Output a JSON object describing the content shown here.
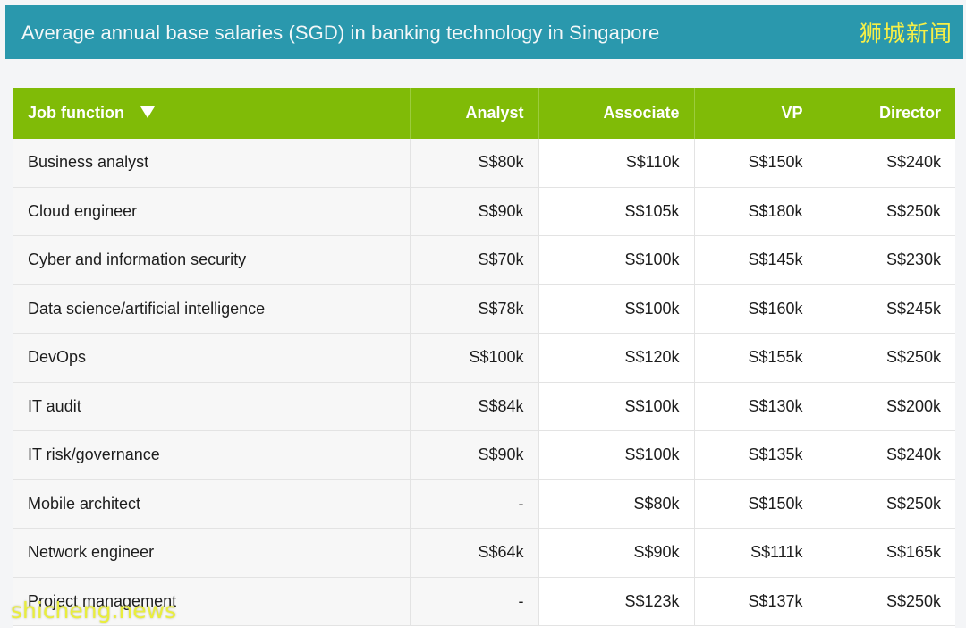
{
  "banner": {
    "title": "Average annual base salaries (SGD) in banking technology in Singapore",
    "logo_text": "狮城新闻"
  },
  "table": {
    "headers": {
      "job": "Job function",
      "analyst": "Analyst",
      "associate": "Associate",
      "vp": "VP",
      "director": "Director"
    },
    "sort_icon": "triangle-down-icon",
    "rows": [
      {
        "job": "Business analyst",
        "analyst": "S$80k",
        "associate": "S$110k",
        "vp": "S$150k",
        "director": "S$240k"
      },
      {
        "job": "Cloud engineer",
        "analyst": "S$90k",
        "associate": "S$105k",
        "vp": "S$180k",
        "director": "S$250k"
      },
      {
        "job": "Cyber and information security",
        "analyst": "S$70k",
        "associate": "S$100k",
        "vp": "S$145k",
        "director": "S$230k"
      },
      {
        "job": "Data science/artificial intelligence",
        "analyst": "S$78k",
        "associate": "S$100k",
        "vp": "S$160k",
        "director": "S$245k"
      },
      {
        "job": "DevOps",
        "analyst": "S$100k",
        "associate": "S$120k",
        "vp": "S$155k",
        "director": "S$250k"
      },
      {
        "job": "IT audit",
        "analyst": "S$84k",
        "associate": "S$100k",
        "vp": "S$130k",
        "director": "S$200k"
      },
      {
        "job": "IT risk/governance",
        "analyst": "S$90k",
        "associate": "S$100k",
        "vp": "S$135k",
        "director": "S$240k"
      },
      {
        "job": "Mobile architect",
        "analyst": "-",
        "associate": "S$80k",
        "vp": "S$150k",
        "director": "S$250k"
      },
      {
        "job": "Network engineer",
        "analyst": "S$64k",
        "associate": "S$90k",
        "vp": "S$111k",
        "director": "S$165k"
      },
      {
        "job": "Project management",
        "analyst": "-",
        "associate": "S$123k",
        "vp": "S$137k",
        "director": "S$250k"
      }
    ]
  },
  "watermark": "shicheng.news",
  "colors": {
    "banner_bg": "#2a98ad",
    "header_bg": "#80bb07",
    "logo": "#f7f046"
  }
}
